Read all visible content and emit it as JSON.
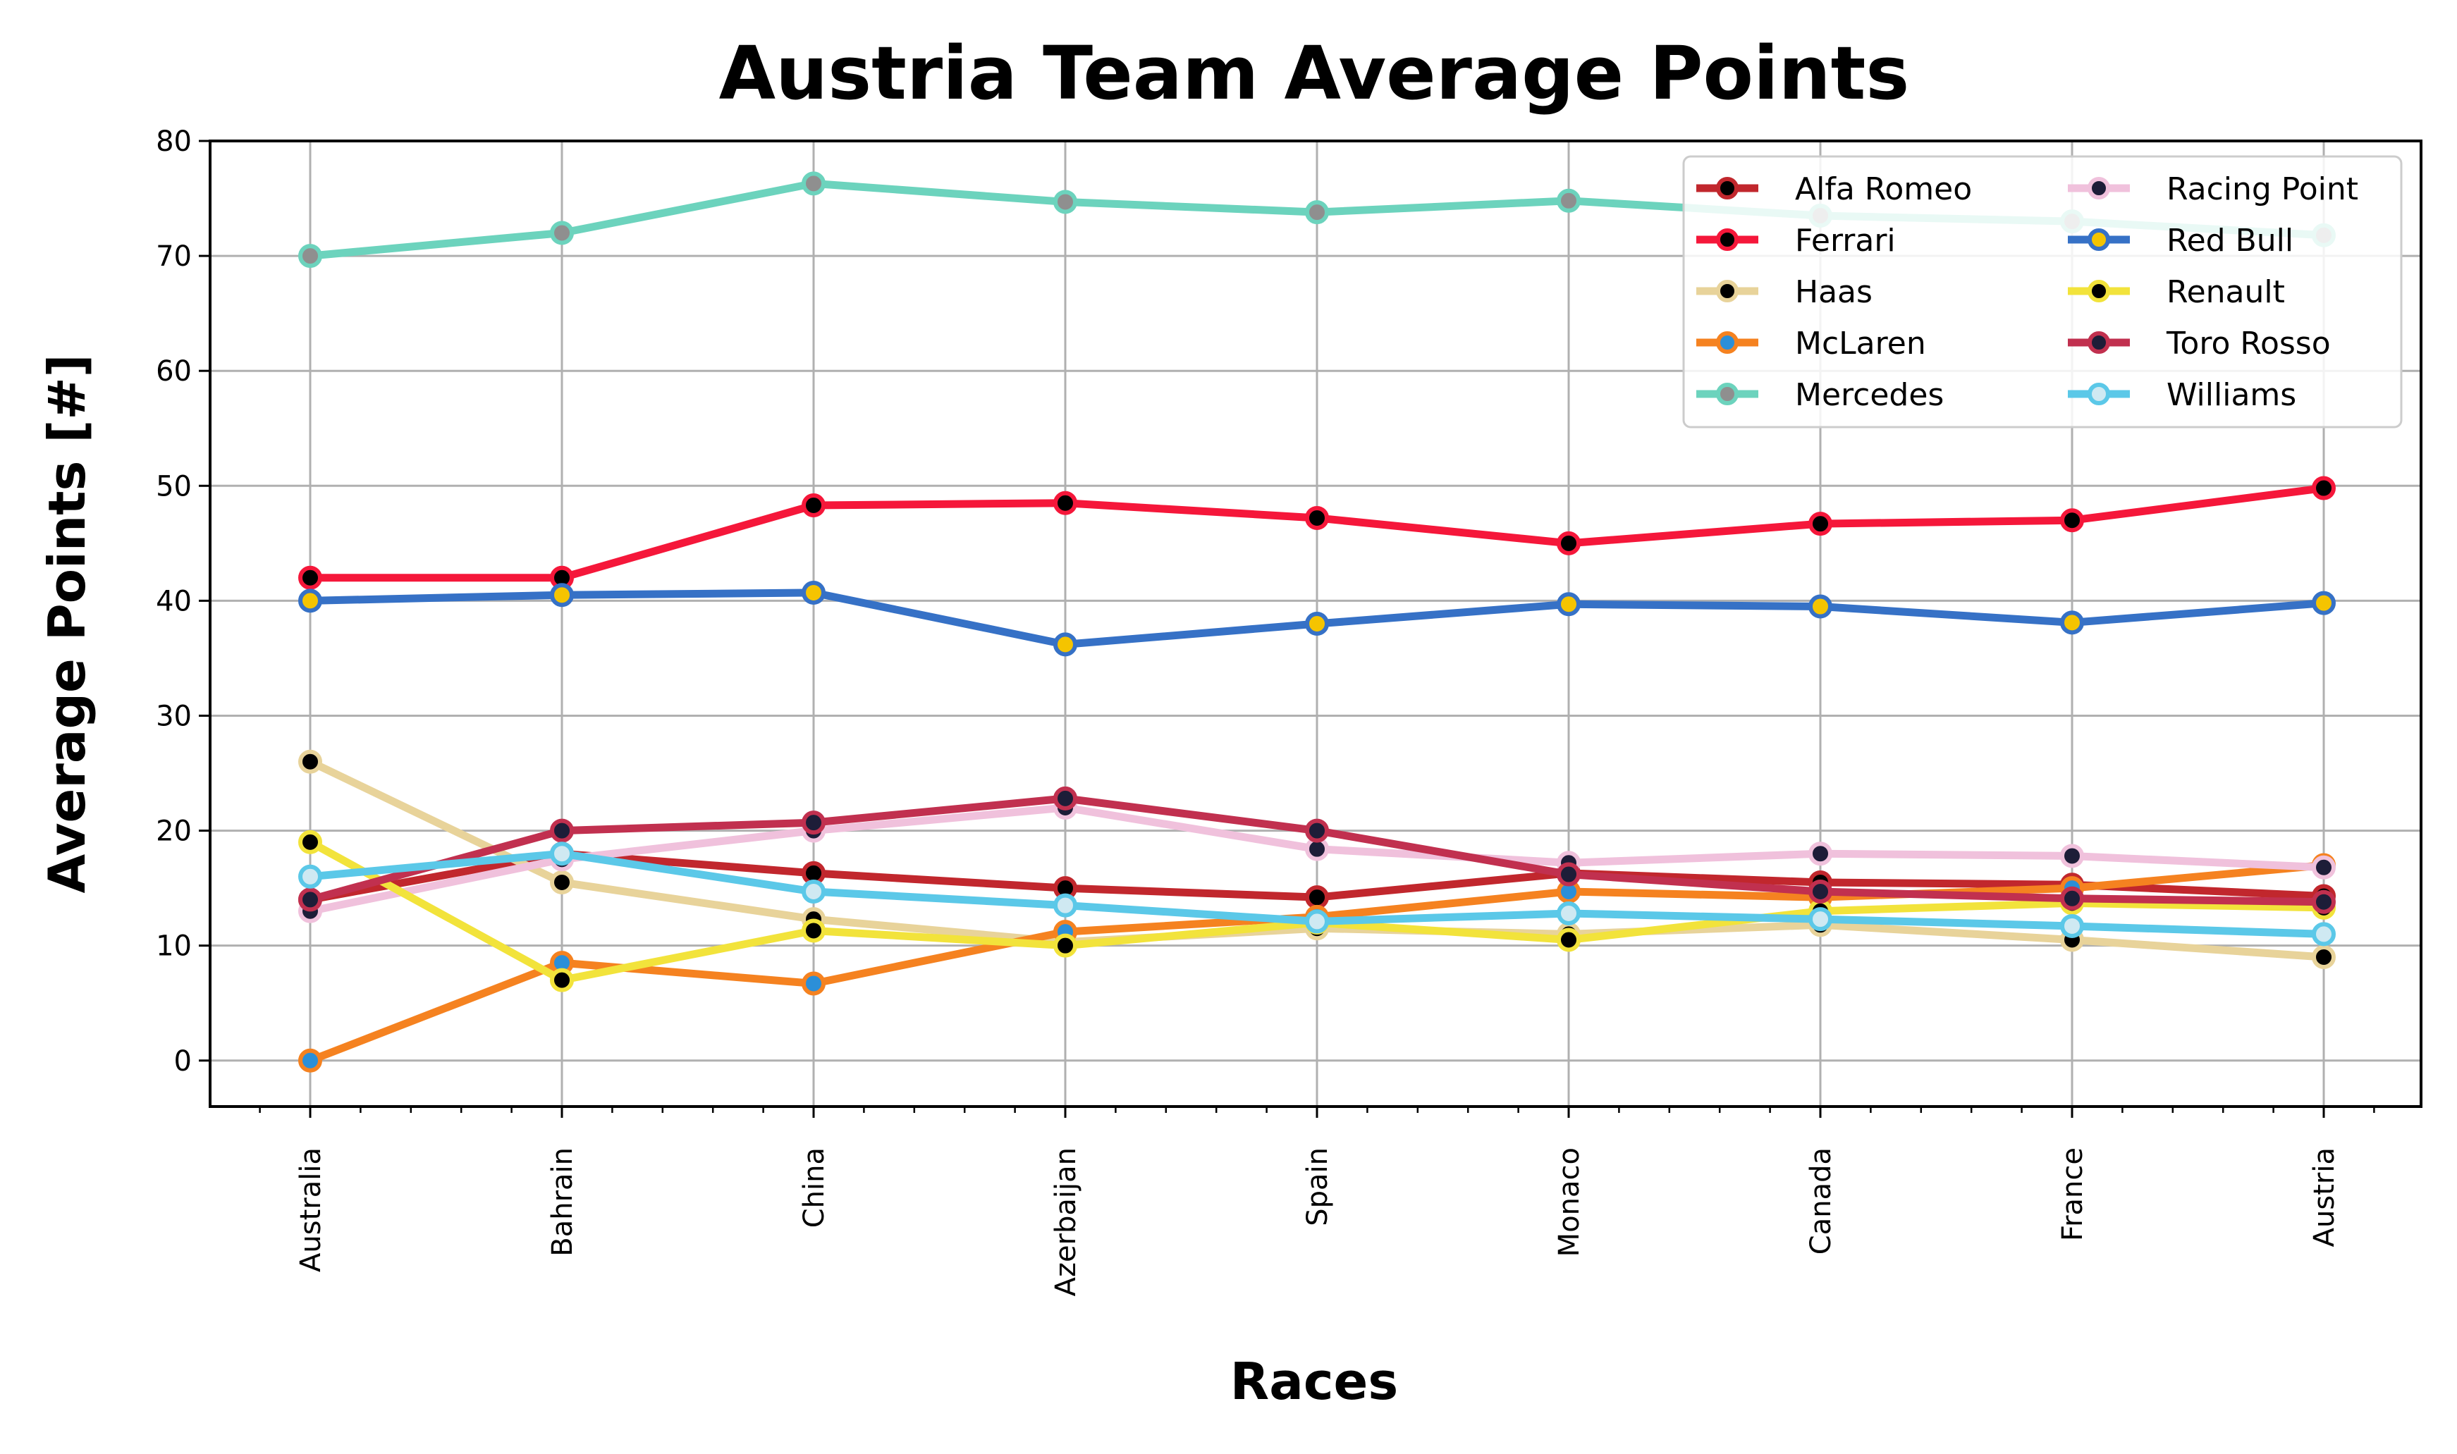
{
  "chart_data": {
    "type": "line",
    "title": "Austria Team Average Points",
    "xlabel": "Races",
    "ylabel": "Average Points [#]",
    "categories": [
      "Australia",
      "Bahrain",
      "China",
      "Azerbaijan",
      "Spain",
      "Monaco",
      "Canada",
      "France",
      "Austria"
    ],
    "ylim": [
      -4,
      80
    ],
    "yticks": [
      0,
      10,
      20,
      30,
      40,
      50,
      60,
      70,
      80
    ],
    "grid": true,
    "legend_position": "top-right",
    "legend_columns": 2,
    "series": [
      {
        "name": "Alfa Romeo",
        "color": "#c1272d",
        "marker_face": "#000000",
        "values": [
          14,
          18,
          16.3,
          15,
          14.2,
          16.3,
          15.5,
          15.3,
          14.3
        ]
      },
      {
        "name": "Ferrari",
        "color": "#f5173a",
        "marker_face": "#000000",
        "values": [
          42,
          42,
          48.3,
          48.5,
          47.2,
          45,
          46.7,
          47,
          49.8
        ]
      },
      {
        "name": "Haas",
        "color": "#e8d39a",
        "marker_face": "#000000",
        "values": [
          26,
          15.5,
          12.3,
          10.3,
          11.5,
          11,
          11.8,
          10.5,
          9
        ]
      },
      {
        "name": "McLaren",
        "color": "#f58220",
        "marker_face": "#2b8fd8",
        "values": [
          0,
          8.5,
          6.7,
          11.2,
          12.5,
          14.7,
          14.2,
          15,
          17
        ]
      },
      {
        "name": "Mercedes",
        "color": "#6cd3bd",
        "marker_face": "#8f8f8f",
        "values": [
          70,
          72,
          76.3,
          74.7,
          73.8,
          74.8,
          73.5,
          73,
          71.8
        ]
      },
      {
        "name": "Racing Point",
        "color": "#f0c1dc",
        "marker_face": "#1d1d38",
        "values": [
          13,
          17.5,
          20,
          22,
          18.4,
          17.2,
          18,
          17.8,
          16.8
        ]
      },
      {
        "name": "Red Bull",
        "color": "#3671c6",
        "marker_face": "#f5c400",
        "values": [
          40,
          40.5,
          40.7,
          36.2,
          38,
          39.7,
          39.5,
          38.1,
          39.8
        ]
      },
      {
        "name": "Renault",
        "color": "#f2e33b",
        "marker_face": "#000000",
        "values": [
          19,
          7,
          11.3,
          10,
          12,
          10.5,
          13,
          13.7,
          13.3
        ]
      },
      {
        "name": "Toro Rosso",
        "color": "#c1304f",
        "marker_face": "#1d1d38",
        "values": [
          14,
          20,
          20.7,
          22.8,
          20,
          16.2,
          14.7,
          14.1,
          13.8
        ]
      },
      {
        "name": "Williams",
        "color": "#5bc8e8",
        "marker_face": "#cfe9f2",
        "values": [
          16,
          18,
          14.7,
          13.5,
          12.1,
          12.8,
          12.3,
          11.7,
          11
        ]
      }
    ]
  }
}
